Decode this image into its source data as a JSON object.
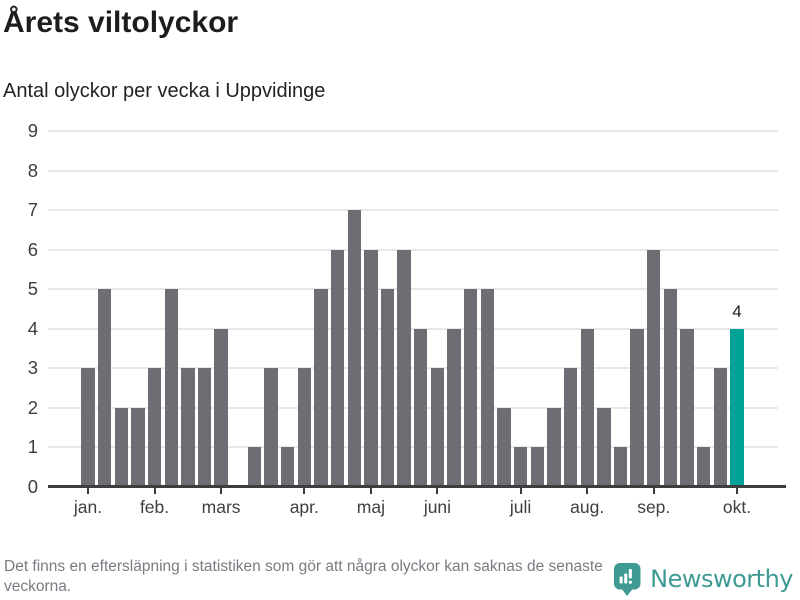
{
  "header": {
    "title": "Årets viltolyckor",
    "subtitle": "Antal olyckor per vecka i Uppvidinge"
  },
  "footer": {
    "note": "Det finns en eftersläpning i statistiken som gör att några olyckor kan saknas de senaste veckorna.",
    "brand": "Newsworthy",
    "brand_color": "#3e9a93"
  },
  "chart_data": {
    "type": "bar",
    "title": "Årets viltolyckor",
    "subtitle": "Antal olyckor per vecka i Uppvidinge",
    "x_unit": "vecka",
    "values": [
      3,
      5,
      2,
      2,
      3,
      5,
      3,
      3,
      4,
      0,
      1,
      3,
      1,
      3,
      5,
      6,
      7,
      6,
      5,
      6,
      4,
      3,
      4,
      5,
      5,
      2,
      1,
      1,
      2,
      3,
      4,
      2,
      1,
      4,
      6,
      5,
      4,
      1,
      3,
      4
    ],
    "month_ticks": [
      {
        "label": "jan.",
        "index": 0
      },
      {
        "label": "feb.",
        "index": 4
      },
      {
        "label": "mars",
        "index": 8
      },
      {
        "label": "apr.",
        "index": 13
      },
      {
        "label": "maj",
        "index": 17
      },
      {
        "label": "juni",
        "index": 21
      },
      {
        "label": "juli",
        "index": 26
      },
      {
        "label": "aug.",
        "index": 30
      },
      {
        "label": "sep.",
        "index": 34
      },
      {
        "label": "okt.",
        "index": 39
      }
    ],
    "ylim": [
      0,
      9
    ],
    "yticks": [
      0,
      1,
      2,
      3,
      4,
      5,
      6,
      7,
      8,
      9
    ],
    "grid": true,
    "legend": "none",
    "highlight_index": 39,
    "highlight_label": "4",
    "bar_color": "#6e6d73",
    "highlight_color": "#00a396",
    "grid_color": "#e7e7e7",
    "axis_color": "#3d3d3d"
  }
}
